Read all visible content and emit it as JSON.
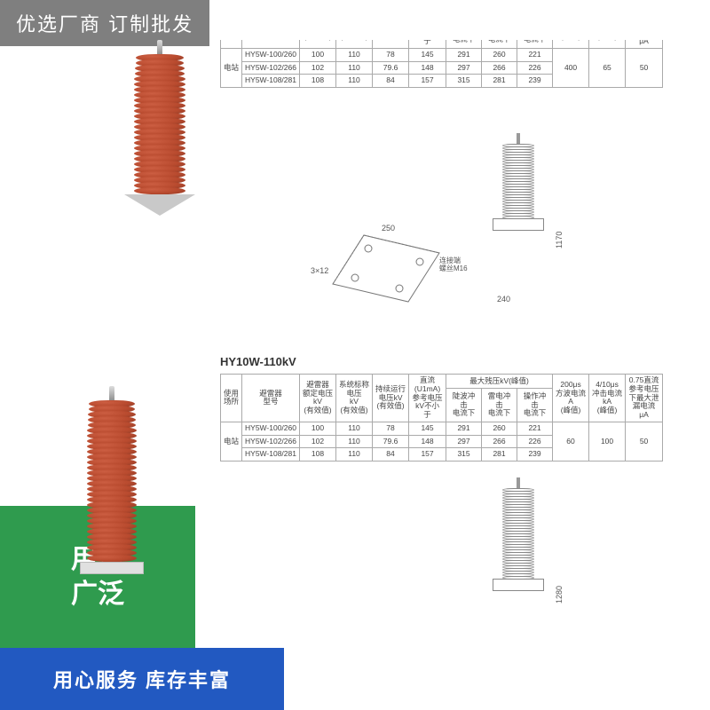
{
  "banners": {
    "top": "优选厂商  订制批发",
    "green_l1": "用途",
    "green_l2": "广泛",
    "blue": "用心服务  库存丰富"
  },
  "arrester_colors": {
    "fin": "#b84a2e",
    "fin_edge": "#8c3a26",
    "base": "#c9c9c9"
  },
  "section_title": "HY10W-110kV",
  "table": {
    "cols": [
      "使用\n场所",
      "避雷器\n型号",
      "避雷器\n额定电压\nkV\n(有效值)",
      "系统标称\n电压\nkV\n(有效值)",
      "持续运行\n电压kV\n(有效值)",
      "直流\n(U1mA)\n参考电压\nkV不小于",
      "陡波冲击\n电流下",
      "雷电冲击\n电流下",
      "操作冲击\n电流下",
      "200μs\n方波电流\nA\n(峰值)",
      "4/10μs\n冲击电流\nkA\n(峰值)",
      "0.75直流\n参考电压\n下最大泄\n漏电流μA"
    ],
    "merge_header": "最大残压kV(峰值)",
    "row_label": "电站",
    "rows1": [
      [
        "HY5W-100/260",
        "100",
        "110",
        "78",
        "145",
        "291",
        "260",
        "221"
      ],
      [
        "HY5W-102/266",
        "102",
        "110",
        "79.6",
        "148",
        "297",
        "266",
        "226"
      ],
      [
        "HY5W-108/281",
        "108",
        "110",
        "84",
        "157",
        "315",
        "281",
        "239"
      ]
    ],
    "tail1": [
      "400",
      "65",
      "50"
    ],
    "rows2": [
      [
        "HY5W-100/260",
        "100",
        "110",
        "78",
        "145",
        "291",
        "260",
        "221"
      ],
      [
        "HY5W-102/266",
        "102",
        "110",
        "79.6",
        "148",
        "297",
        "266",
        "226"
      ],
      [
        "HY5W-108/281",
        "108",
        "110",
        "84",
        "157",
        "315",
        "281",
        "239"
      ]
    ],
    "tail2": [
      "60",
      "100",
      "50"
    ]
  },
  "dims": {
    "h1": "1170",
    "w1": "240",
    "d1": "250",
    "h2": "1280",
    "angle": "3×12",
    "note": "连接端\n螺丝M16"
  }
}
